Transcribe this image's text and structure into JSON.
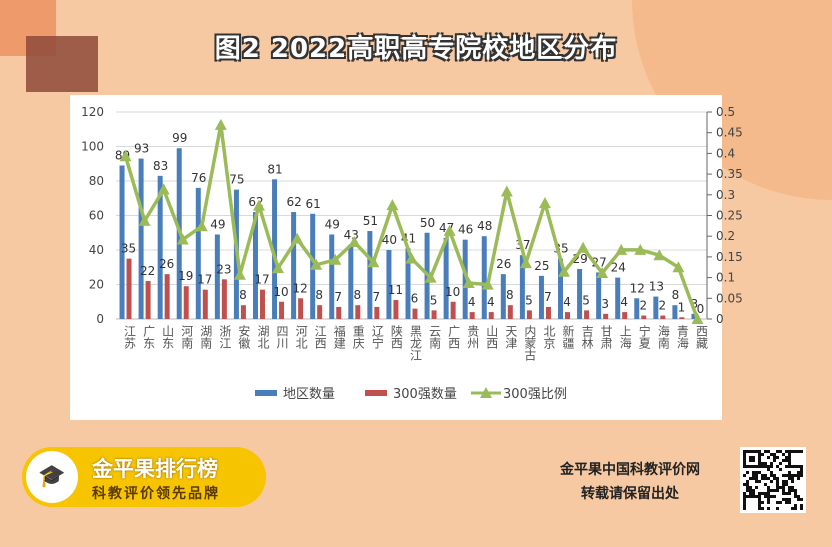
{
  "title": "图2  2022高职高专院校地区分布",
  "chart_data": {
    "type": "bar+line",
    "categories": [
      "江苏",
      "广东",
      "山东",
      "河南",
      "湖南",
      "浙江",
      "安徽",
      "湖北",
      "四川",
      "河北",
      "江西",
      "福建",
      "重庆",
      "辽宁",
      "陕西",
      "黑龙江",
      "云南",
      "广西",
      "贵州",
      "山西",
      "天津",
      "内蒙古",
      "北京",
      "新疆",
      "吉林",
      "甘肃",
      "上海",
      "宁夏",
      "海南",
      "青海",
      "西藏"
    ],
    "series": [
      {
        "name": "地区数量",
        "type": "bar",
        "axis": "left",
        "color": "#4a7ebb",
        "values": [
          89,
          93,
          83,
          99,
          76,
          49,
          75,
          62,
          81,
          62,
          61,
          49,
          43,
          51,
          40,
          41,
          50,
          47,
          46,
          48,
          26,
          37,
          25,
          35,
          29,
          27,
          24,
          12,
          13,
          8,
          3
        ]
      },
      {
        "name": "300强数量",
        "type": "bar",
        "axis": "left",
        "color": "#c0504d",
        "values": [
          35,
          22,
          26,
          19,
          17,
          23,
          8,
          17,
          10,
          12,
          8,
          7,
          8,
          7,
          11,
          6,
          5,
          10,
          4,
          4,
          8,
          5,
          7,
          4,
          5,
          3,
          4,
          2,
          2,
          1,
          0
        ]
      },
      {
        "name": "300强比例",
        "type": "line",
        "axis": "right",
        "color": "#9bbb59",
        "values": [
          0.393,
          0.237,
          0.313,
          0.192,
          0.224,
          0.469,
          0.107,
          0.274,
          0.123,
          0.194,
          0.131,
          0.143,
          0.186,
          0.137,
          0.275,
          0.146,
          0.1,
          0.213,
          0.087,
          0.083,
          0.308,
          0.135,
          0.28,
          0.114,
          0.172,
          0.111,
          0.167,
          0.167,
          0.154,
          0.125,
          0
        ]
      }
    ],
    "ylim_left": [
      0,
      120
    ],
    "yticks_left": [
      "0",
      "20",
      "40",
      "60",
      "80",
      "100",
      "120"
    ],
    "ylim_right": [
      0,
      0.5
    ],
    "yticks_right": [
      "0",
      "0.05",
      "0.1",
      "0.15",
      "0.2",
      "0.25",
      "0.3",
      "0.35",
      "0.4",
      "0.45",
      "0.5"
    ],
    "grid": true,
    "legend": "bottom"
  },
  "logo": {
    "name": "金平果排行榜",
    "slogan": "科教评价领先品牌"
  },
  "source": {
    "line1": "金平果中国科教评价网",
    "line2": "转载请保留出处"
  }
}
